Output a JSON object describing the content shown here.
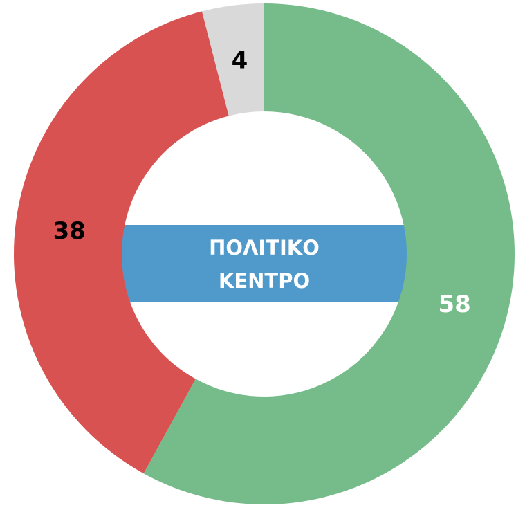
{
  "chart_data": {
    "type": "donut",
    "center_label": [
      "ΠΟΛΙΤΙΚΟ",
      "ΚΕΝΤΡΟ"
    ],
    "values": [
      58,
      38,
      4
    ],
    "colors": [
      "#76bb8a",
      "#d95252",
      "#d9d9d9"
    ],
    "label_colors": [
      "#ffffff",
      "#000000",
      "#000000"
    ],
    "center_color": "#4f9acb"
  }
}
